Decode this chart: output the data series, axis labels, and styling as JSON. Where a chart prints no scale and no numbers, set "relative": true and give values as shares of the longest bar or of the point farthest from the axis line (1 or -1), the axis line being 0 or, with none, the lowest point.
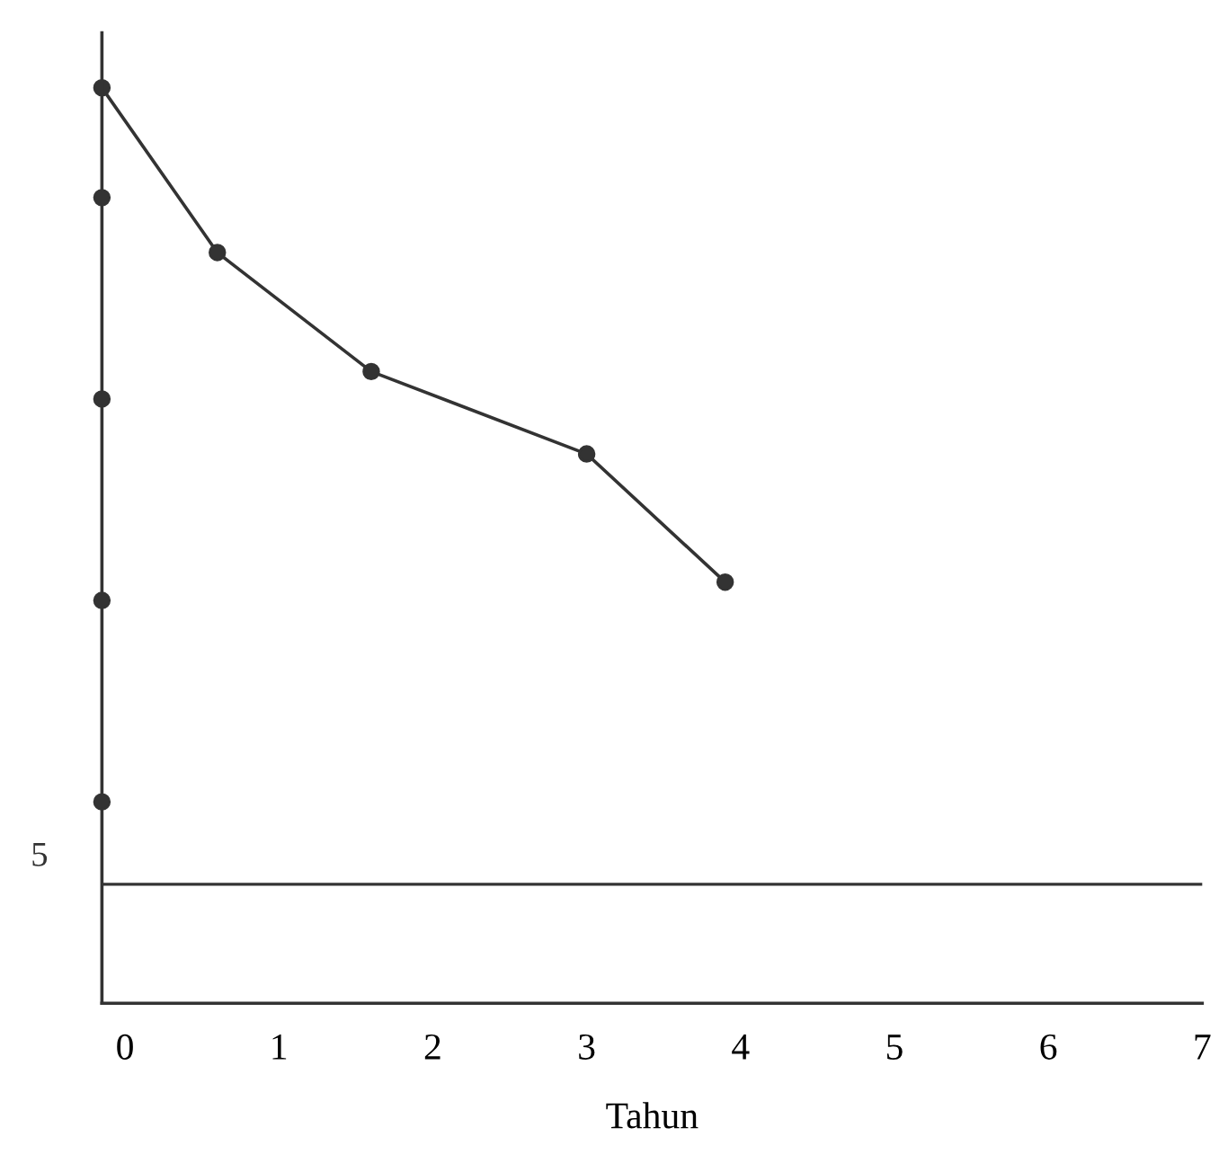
{
  "chart_data": {
    "type": "line",
    "xlabel": "Tahun",
    "relative": true,
    "xlim": [
      -0.15,
      7
    ],
    "xticks": [
      0,
      1,
      2,
      3,
      4,
      5,
      6,
      7
    ],
    "series": [
      {
        "color": "#333333",
        "marker": "circle",
        "x": [
          -0.15,
          0.6,
          1.6,
          3.0,
          3.9
        ],
        "values": [
          1,
          0.82,
          0.69,
          0.6,
          0.46
        ]
      },
      {
        "type": "scatter",
        "color": "#333333",
        "marker": "circle",
        "x": [
          -0.15,
          -0.15,
          -0.15,
          -0.15
        ],
        "values": [
          0.88,
          0.66,
          0.44,
          0.22
        ]
      }
    ],
    "ref_lines": [
      {
        "axis": "y",
        "value": 0.13,
        "color": "#333333"
      }
    ],
    "annotations": [
      "5"
    ],
    "grid": false,
    "legend": false
  }
}
